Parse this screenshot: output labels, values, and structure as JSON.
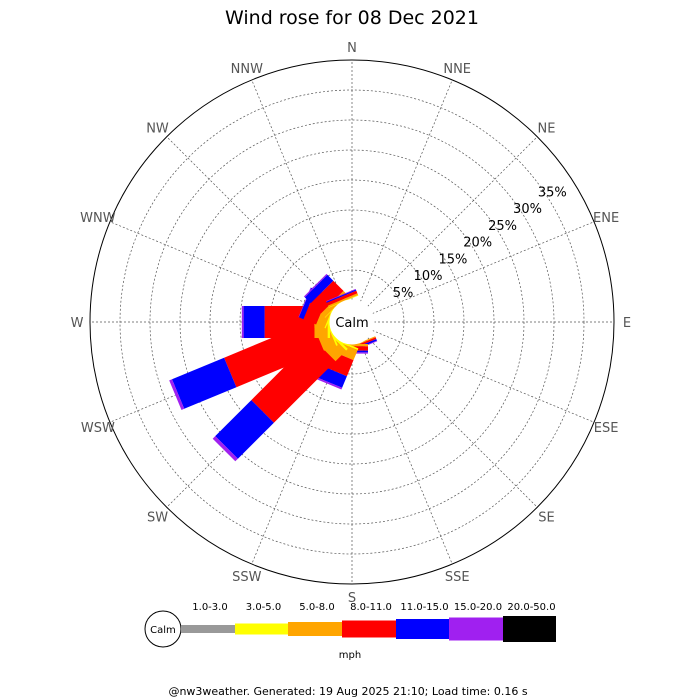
{
  "chart_data": {
    "type": "wind-rose",
    "title": "Wind rose for 08 Dec 2021",
    "directions": [
      "N",
      "NNE",
      "NE",
      "ENE",
      "E",
      "ESE",
      "SE",
      "SSE",
      "S",
      "SSW",
      "SW",
      "WSW",
      "W",
      "WNW",
      "NW",
      "NNW"
    ],
    "radial_ticks": [
      "5%",
      "10%",
      "15%",
      "20%",
      "25%",
      "30%",
      "35%"
    ],
    "radial_values": [
      5,
      10,
      15,
      20,
      25,
      30,
      35
    ],
    "r_max_percent": 40,
    "calm_label": "Calm",
    "speed_bins": [
      {
        "label": "1.0-3.0",
        "color": "#999999"
      },
      {
        "label": "3.0-5.0",
        "color": "#ffff00"
      },
      {
        "label": "5.0-8.0",
        "color": "#ffa500"
      },
      {
        "label": "8.0-11.0",
        "color": "#ff0000"
      },
      {
        "label": "11.0-15.0",
        "color": "#0000ff"
      },
      {
        "label": "15.0-20.0",
        "color": "#a020f0"
      },
      {
        "label": "20.0-50.0",
        "color": "#000000"
      }
    ],
    "unit": "mph",
    "series": [
      {
        "direction": "SSE",
        "values": [
          0,
          0,
          0.2,
          0.3,
          0.3,
          0.1,
          0
        ]
      },
      {
        "direction": "S",
        "values": [
          0,
          0,
          0.4,
          0.7,
          0.3,
          0.2,
          0
        ]
      },
      {
        "direction": "SSW",
        "values": [
          0,
          0.3,
          1.8,
          2.9,
          2.1,
          0.3,
          0
        ]
      },
      {
        "direction": "SW",
        "values": [
          0,
          0.4,
          2.5,
          14.5,
          8.5,
          0.6,
          0
        ]
      },
      {
        "direction": "WSW",
        "values": [
          0,
          0.3,
          2.2,
          15.8,
          9.4,
          0.5,
          0
        ]
      },
      {
        "direction": "W",
        "values": [
          0,
          0.4,
          2.2,
          8.3,
          3.5,
          0.3,
          0
        ]
      },
      {
        "direction": "WNW",
        "values": [
          0,
          0.2,
          1.5,
          2.3,
          0.8,
          0.1,
          0
        ]
      },
      {
        "direction": "NW",
        "values": [
          0,
          0.1,
          0.9,
          2.4,
          1.4,
          0.2,
          0
        ]
      },
      {
        "direction": "NNW",
        "values": [
          0,
          0.1,
          0.3,
          0.5,
          0.2,
          0.1,
          0
        ]
      }
    ]
  },
  "footer": "@nw3weather.  Generated: 19 Aug 2025 21:10; Load time: 0.16 s"
}
